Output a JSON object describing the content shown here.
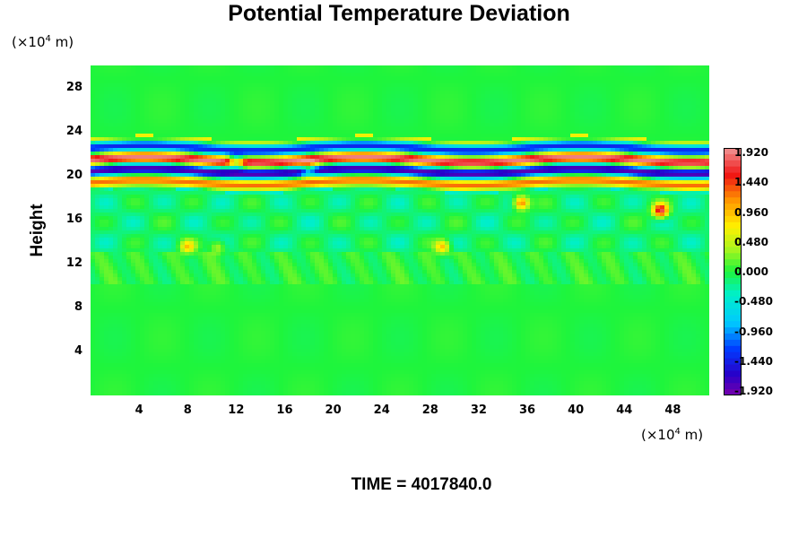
{
  "title": "Potential Temperature Deviation",
  "y_unit": {
    "prefix": "(×10",
    "exp": "4",
    "suffix": " m)"
  },
  "x_unit": {
    "prefix": "(×10",
    "exp": "4",
    "suffix": " m)"
  },
  "ylabel": "Height",
  "time_label": "TIME = 4017840.0",
  "chart_data": {
    "type": "heatmap",
    "title": "Potential Temperature Deviation",
    "xlabel": "",
    "ylabel": "Height",
    "x_unit": "(×10^4 m)",
    "y_unit": "(×10^4 m)",
    "xlim": [
      0,
      51
    ],
    "ylim": [
      0,
      30
    ],
    "x_ticks": [
      4,
      8,
      12,
      16,
      20,
      24,
      28,
      32,
      36,
      40,
      44,
      48
    ],
    "y_ticks": [
      4,
      8,
      12,
      16,
      20,
      24,
      28
    ],
    "colorbar": {
      "ticks": [
        1.92,
        1.44,
        0.96,
        0.48,
        0.0,
        -0.48,
        -0.96,
        -1.44,
        -1.92
      ],
      "tick_labels": [
        "1.920",
        "1.440",
        "0.960",
        "0.480",
        "0.000",
        "-0.480",
        "-0.960",
        "-1.440",
        "-1.920"
      ],
      "range": [
        -1.92,
        1.92
      ]
    },
    "field_description_values": {
      "background": 0.0,
      "upper_layer_band_height": [
        19.5,
        22.5
      ],
      "upper_layer_extremes": [
        -1.92,
        1.92
      ],
      "lower_boundary_height": 10
    },
    "grid": false,
    "legend": "colorbar-right"
  }
}
